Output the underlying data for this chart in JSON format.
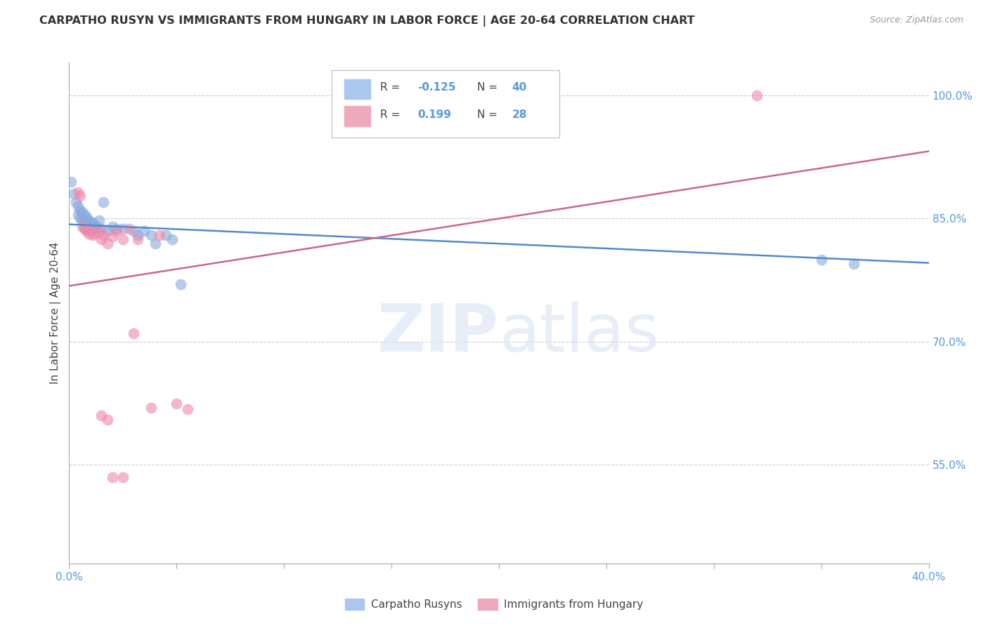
{
  "title": "CARPATHO RUSYN VS IMMIGRANTS FROM HUNGARY IN LABOR FORCE | AGE 20-64 CORRELATION CHART",
  "source": "Source: ZipAtlas.com",
  "ylabel": "In Labor Force | Age 20-64",
  "xmin": 0.0,
  "xmax": 0.4,
  "ymin": 0.43,
  "ymax": 1.04,
  "yticks": [
    0.55,
    0.7,
    0.85,
    1.0
  ],
  "ytick_labels": [
    "55.0%",
    "70.0%",
    "85.0%",
    "100.0%"
  ],
  "xticks": [
    0.0,
    0.05,
    0.1,
    0.15,
    0.2,
    0.25,
    0.3,
    0.35,
    0.4
  ],
  "xtick_labels": [
    "0.0%",
    "",
    "",
    "",
    "",
    "",
    "",
    "",
    "40.0%"
  ],
  "blue_color": "#88aadd",
  "pink_color": "#ee88aa",
  "blue_line_color": "#5588cc",
  "pink_line_color": "#cc6688",
  "watermark_zip": "ZIP",
  "watermark_atlas": "atlas",
  "blue_scatter_x": [
    0.001,
    0.002,
    0.003,
    0.004,
    0.004,
    0.005,
    0.005,
    0.006,
    0.006,
    0.007,
    0.007,
    0.007,
    0.008,
    0.008,
    0.008,
    0.009,
    0.009,
    0.01,
    0.01,
    0.011,
    0.011,
    0.012,
    0.013,
    0.014,
    0.015,
    0.016,
    0.018,
    0.02,
    0.022,
    0.025,
    0.03,
    0.032,
    0.035,
    0.038,
    0.04,
    0.045,
    0.048,
    0.052,
    0.35,
    0.365
  ],
  "blue_scatter_y": [
    0.895,
    0.88,
    0.87,
    0.865,
    0.855,
    0.86,
    0.85,
    0.858,
    0.848,
    0.855,
    0.848,
    0.84,
    0.852,
    0.845,
    0.838,
    0.848,
    0.84,
    0.845,
    0.838,
    0.845,
    0.838,
    0.842,
    0.84,
    0.848,
    0.838,
    0.87,
    0.835,
    0.84,
    0.838,
    0.838,
    0.835,
    0.83,
    0.835,
    0.83,
    0.82,
    0.83,
    0.825,
    0.77,
    0.8,
    0.795
  ],
  "pink_scatter_x": [
    0.004,
    0.005,
    0.006,
    0.007,
    0.008,
    0.009,
    0.01,
    0.011,
    0.012,
    0.014,
    0.015,
    0.016,
    0.018,
    0.02,
    0.022,
    0.025,
    0.028,
    0.03,
    0.032,
    0.038,
    0.042,
    0.05,
    0.055,
    0.015,
    0.018,
    0.025,
    0.02,
    0.32
  ],
  "pink_scatter_y": [
    0.882,
    0.878,
    0.84,
    0.838,
    0.835,
    0.832,
    0.835,
    0.83,
    0.832,
    0.835,
    0.825,
    0.83,
    0.82,
    0.828,
    0.835,
    0.825,
    0.838,
    0.71,
    0.825,
    0.62,
    0.83,
    0.625,
    0.618,
    0.61,
    0.605,
    0.535,
    0.535,
    1.0
  ],
  "blue_trendline_x": [
    0.0,
    0.4
  ],
  "blue_trendline_y": [
    0.843,
    0.796
  ],
  "pink_trendline_x": [
    0.0,
    0.4
  ],
  "pink_trendline_y": [
    0.768,
    0.932
  ],
  "background_color": "#ffffff",
  "grid_color": "#cccccc",
  "axis_label_color": "#5599dd",
  "title_color": "#333333"
}
